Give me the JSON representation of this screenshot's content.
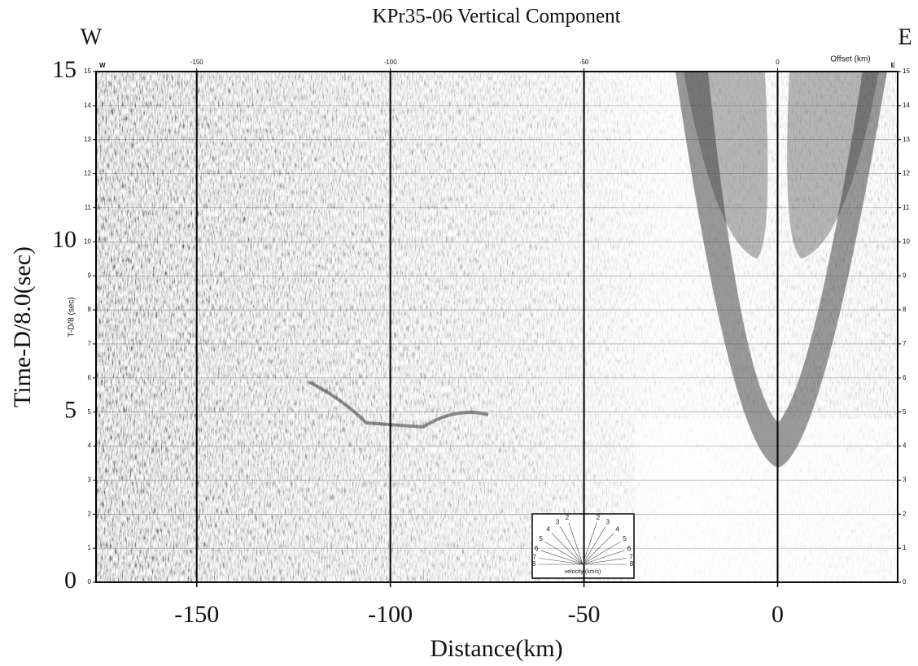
{
  "chart_data": {
    "type": "seismic",
    "title": "KPr35-06 Vertical Component",
    "xlabel": "Distance(km)",
    "ylabel": "Time-D/8.0(sec)",
    "west": "W",
    "east": "E",
    "xlim": [
      -176,
      31
    ],
    "ylim": [
      0,
      15
    ],
    "xticks": [
      -150,
      -100,
      -50,
      0
    ],
    "yticks": [
      0,
      5,
      10,
      15
    ],
    "inner_axis": {
      "xlabel": "Offset (km)",
      "ylabel": "T-D/8 (sec)",
      "xticks": [
        -150,
        -100,
        -50,
        0
      ],
      "yticks": [
        0,
        1,
        2,
        3,
        4,
        5,
        6,
        7,
        8,
        9,
        10,
        11,
        12,
        13,
        14,
        15
      ]
    },
    "velocity_key": {
      "label": "velocity (km/s)",
      "velocities": [
        2,
        3,
        4,
        5,
        6,
        7,
        8
      ]
    }
  }
}
